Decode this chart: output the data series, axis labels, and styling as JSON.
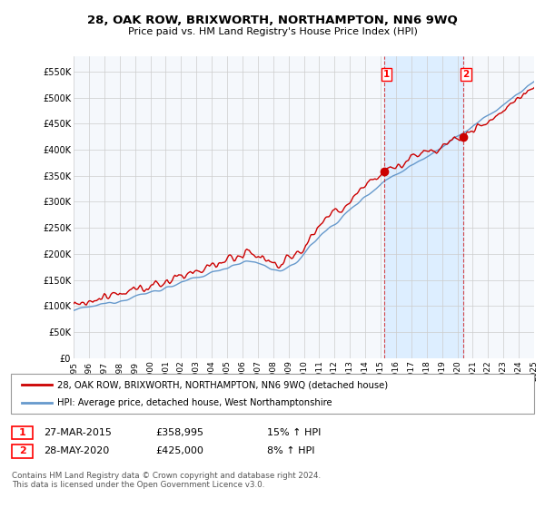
{
  "title": "28, OAK ROW, BRIXWORTH, NORTHAMPTON, NN6 9WQ",
  "subtitle": "Price paid vs. HM Land Registry's House Price Index (HPI)",
  "ylabel_ticks": [
    "£0",
    "£50K",
    "£100K",
    "£150K",
    "£200K",
    "£250K",
    "£300K",
    "£350K",
    "£400K",
    "£450K",
    "£500K",
    "£550K"
  ],
  "ylim": [
    0,
    580000
  ],
  "ytick_vals": [
    0,
    50000,
    100000,
    150000,
    200000,
    250000,
    300000,
    350000,
    400000,
    450000,
    500000,
    550000
  ],
  "xmin": 1995,
  "xmax": 2025,
  "sale1_x": 2015.23,
  "sale1_y": 358995,
  "sale2_x": 2020.41,
  "sale2_y": 425000,
  "sale1_label": "27-MAR-2015",
  "sale1_price": "£358,995",
  "sale1_hpi": "15% ↑ HPI",
  "sale2_label": "28-MAY-2020",
  "sale2_price": "£425,000",
  "sale2_hpi": "8% ↑ HPI",
  "legend_line1": "28, OAK ROW, BRIXWORTH, NORTHAMPTON, NN6 9WQ (detached house)",
  "legend_line2": "HPI: Average price, detached house, West Northamptonshire",
  "footer": "Contains HM Land Registry data © Crown copyright and database right 2024.\nThis data is licensed under the Open Government Licence v3.0.",
  "line_color_red": "#cc0000",
  "line_color_blue": "#6699cc",
  "shade_color": "#ddeeff",
  "plot_bg": "#f5f8fc",
  "grid_color": "#cccccc",
  "vline_color": "#cc0000"
}
